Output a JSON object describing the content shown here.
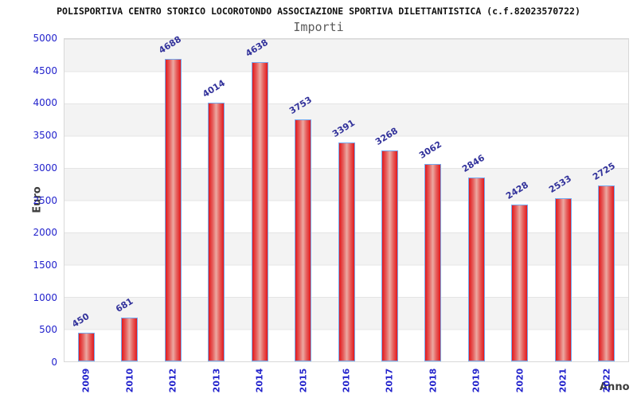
{
  "header": {
    "title": "POLISPORTIVA CENTRO STORICO LOCOROTONDO ASSOCIAZIONE SPORTIVA DILETTANTISTICA (c.f.82023570722)",
    "subtitle": "Importi"
  },
  "chart_data": {
    "type": "bar",
    "title": "Importi",
    "categories": [
      "2009",
      "2010",
      "2012",
      "2013",
      "2014",
      "2015",
      "2016",
      "2017",
      "2018",
      "2019",
      "2020",
      "2021",
      "2022"
    ],
    "values": [
      450,
      681,
      4688,
      4014,
      4638,
      3753,
      3391,
      3268,
      3062,
      2846,
      2428,
      2533,
      2725
    ],
    "xlabel": "Anno",
    "ylabel": "Euro",
    "ylim": [
      0,
      5000
    ],
    "ytick_step": 500,
    "grid": "horizontal gridlines every 500 with alternating gray/white bands",
    "legend": "none",
    "bar_value_labels_rotated_deg": -32,
    "x_tick_labels_rotated_deg": -90
  },
  "colors": {
    "bar_edge_red": "#e2181c",
    "bar_center_light": "#eca9a2",
    "bar_border_blue": "#74aaf0",
    "axis_tick_blue": "#2323cc",
    "value_label_navy": "#32329b",
    "band_gray": "#f3f3f3",
    "grid_line": "#e4e4e4",
    "title_black": "#111111",
    "subtitle_gray": "#5a5a5a",
    "axis_title_gray": "#3c3c3c",
    "background": "#ffffff"
  }
}
